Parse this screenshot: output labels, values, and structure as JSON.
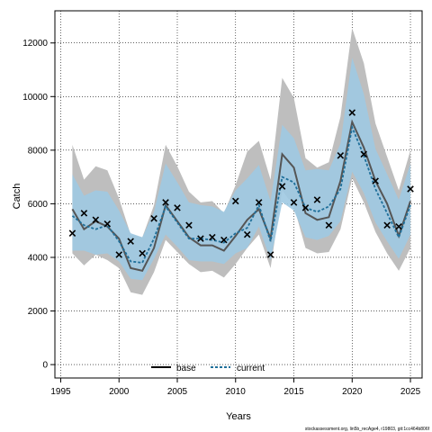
{
  "chart_data": {
    "type": "line",
    "xlabel": "Years",
    "ylabel": "Catch",
    "xlim": [
      1994.5,
      2026
    ],
    "ylim": [
      -500,
      13200
    ],
    "x_ticks": [
      1995,
      2000,
      2005,
      2010,
      2015,
      2020,
      2025
    ],
    "y_ticks": [
      0,
      2000,
      4000,
      6000,
      8000,
      10000,
      12000
    ],
    "grid": true,
    "legend_position": "bottom-center",
    "years": [
      1996,
      1997,
      1998,
      1999,
      2000,
      2001,
      2002,
      2003,
      2004,
      2005,
      2006,
      2007,
      2008,
      2009,
      2010,
      2011,
      2012,
      2013,
      2014,
      2015,
      2016,
      2017,
      2018,
      2019,
      2020,
      2021,
      2022,
      2023,
      2024,
      2025
    ],
    "series": [
      {
        "name": "base",
        "color": "#000000",
        "line": "solid",
        "values": [
          5800,
          5050,
          5350,
          5150,
          4700,
          3600,
          3500,
          4350,
          5950,
          5350,
          4750,
          4450,
          4450,
          4250,
          4800,
          5400,
          5800,
          4700,
          7850,
          7350,
          5650,
          5400,
          5500,
          6850,
          9050,
          8100,
          6850,
          6000,
          4800,
          6100
        ],
        "lower": [
          4150,
          3700,
          4100,
          3900,
          3600,
          2700,
          2600,
          3450,
          4650,
          4200,
          3750,
          3450,
          3500,
          3250,
          3750,
          4350,
          4850,
          3600,
          6500,
          5900,
          4350,
          4150,
          4200,
          5050,
          6950,
          6050,
          4950,
          4150,
          3500,
          4350
        ],
        "upper": [
          8200,
          6900,
          7400,
          7250,
          6200,
          4850,
          4750,
          5950,
          8200,
          7400,
          6450,
          6050,
          6100,
          5650,
          6700,
          7950,
          8350,
          6900,
          10700,
          9950,
          7700,
          7350,
          7550,
          9250,
          12550,
          11250,
          9000,
          7750,
          6500,
          8000
        ]
      },
      {
        "name": "current",
        "color": "#1f6f9a",
        "line": "dashed",
        "values": [
          5550,
          5200,
          5050,
          5200,
          4600,
          3850,
          3800,
          4700,
          5900,
          5300,
          4700,
          4700,
          4650,
          4550,
          4900,
          5100,
          5950,
          4600,
          7000,
          6800,
          5850,
          5700,
          5900,
          6550,
          8850,
          7800,
          6550,
          5650,
          4750,
          5950
        ],
        "lower": [
          4250,
          4250,
          4100,
          4150,
          3850,
          3200,
          3150,
          3950,
          4850,
          4400,
          3900,
          3850,
          3850,
          3750,
          4150,
          4350,
          5150,
          3900,
          6050,
          5750,
          4750,
          4650,
          4800,
          5350,
          7200,
          6400,
          5300,
          4600,
          3950,
          4850
        ],
        "upper": [
          7100,
          6300,
          6500,
          6450,
          5750,
          4900,
          4750,
          5700,
          7500,
          6800,
          6050,
          5950,
          5900,
          5700,
          6500,
          6950,
          7450,
          6100,
          8950,
          8450,
          7250,
          7300,
          7250,
          8250,
          11450,
          10100,
          8050,
          7100,
          6150,
          7500
        ]
      }
    ],
    "observations": {
      "name": "observed",
      "marker": "x",
      "values": [
        4900,
        5650,
        5400,
        5250,
        4100,
        4600,
        4150,
        5450,
        6050,
        5850,
        5200,
        4700,
        4750,
        4650,
        6100,
        4850,
        6050,
        4100,
        6650,
        6050,
        5850,
        6150,
        5200,
        7800,
        9400,
        7850,
        6850,
        5200,
        5150,
        6550
      ]
    },
    "band_colors": {
      "base": "#bebebe",
      "current": "#9ec9e2"
    },
    "footer": "stockassessment.org, lin5b_recAge4, r19803, git:1cc464b806f"
  }
}
